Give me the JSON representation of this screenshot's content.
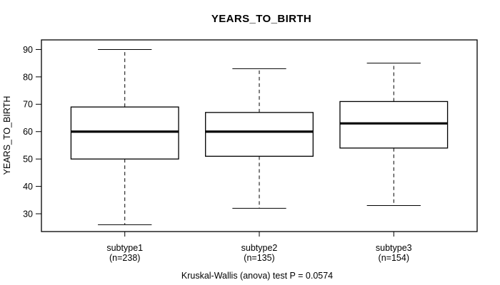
{
  "chart_data": {
    "type": "boxplot",
    "title": "YEARS_TO_BIRTH",
    "ylabel": "YEARS_TO_BIRTH",
    "caption": "Kruskal-Wallis (anova) test P = 0.0574",
    "p_value": "0.0574",
    "ylim": [
      23.5,
      93.5
    ],
    "yticks": [
      30,
      40,
      50,
      60,
      70,
      80,
      90
    ],
    "grid": false,
    "line_color": "#000000",
    "box_fill_color": "#ffffff",
    "background_color": "#ffffff",
    "groups": [
      {
        "label": "subtype1",
        "sublabel": "(n=238)",
        "n": 238,
        "stats": {
          "whisker_low": 26,
          "q1": 50,
          "median": 60,
          "q3": 69,
          "whisker_high": 90
        }
      },
      {
        "label": "subtype2",
        "sublabel": "(n=135)",
        "n": 135,
        "stats": {
          "whisker_low": 32,
          "q1": 51,
          "median": 60,
          "q3": 67,
          "whisker_high": 83
        }
      },
      {
        "label": "subtype3",
        "sublabel": "(n=154)",
        "n": 154,
        "stats": {
          "whisker_low": 33,
          "q1": 54,
          "median": 63,
          "q3": 71,
          "whisker_high": 85
        }
      }
    ]
  }
}
